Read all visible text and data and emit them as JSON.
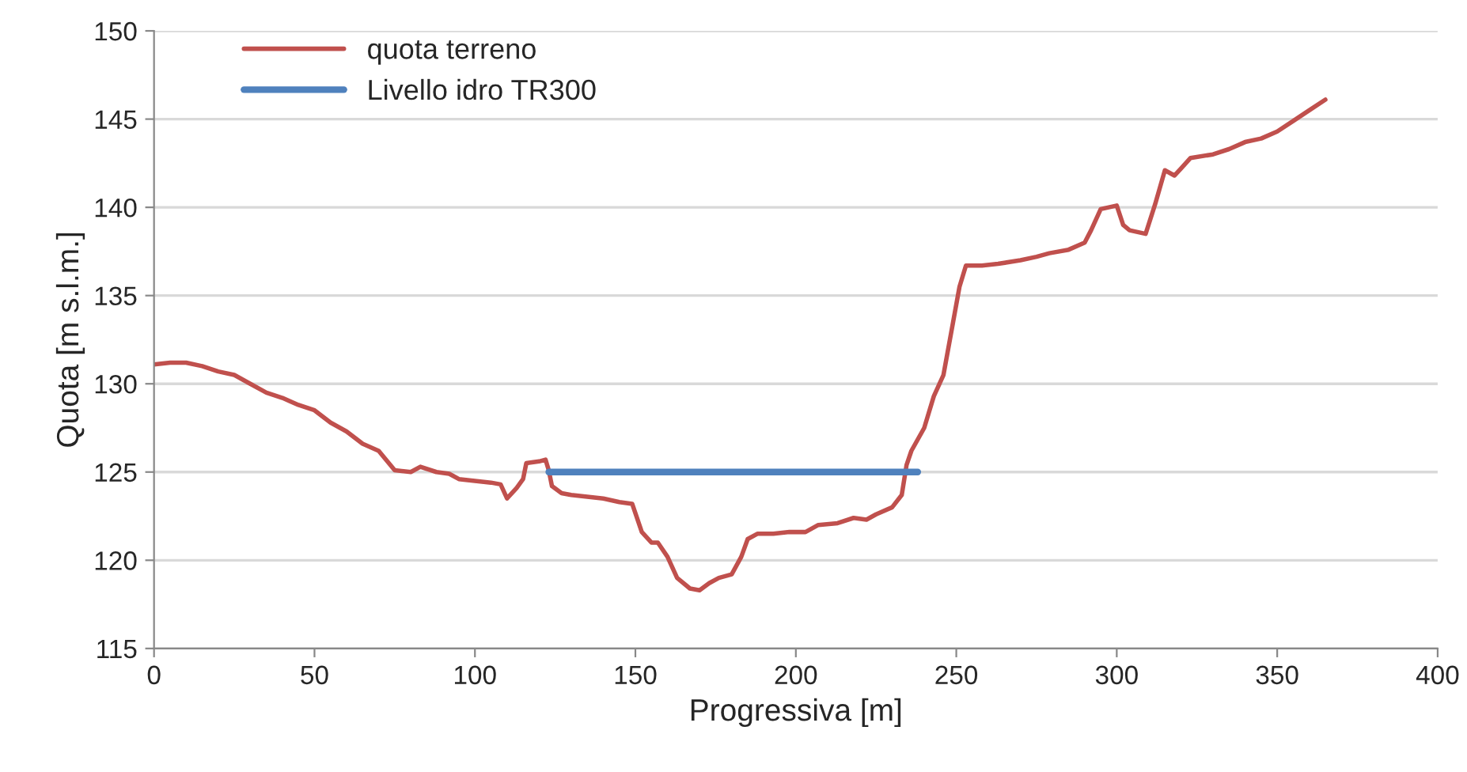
{
  "chart_data": {
    "type": "line",
    "xlabel": "Progressiva [m]",
    "ylabel": "Quota [m s.l.m.]",
    "xlim": [
      0,
      400
    ],
    "xticks": [
      0,
      50,
      100,
      150,
      200,
      250,
      300,
      350,
      400
    ],
    "ylim": [
      115,
      150
    ],
    "yticks": [
      115,
      120,
      125,
      130,
      135,
      140,
      145,
      150
    ],
    "grid": "y",
    "legend": "top left",
    "marker": "none",
    "line_style": "solid",
    "series": [
      {
        "name": "quota terreno",
        "color": "#c0504d",
        "x": [
          0,
          5,
          10,
          15,
          20,
          25,
          30,
          35,
          40,
          45,
          50,
          55,
          60,
          65,
          70,
          75,
          80,
          83,
          88,
          92,
          95,
          100,
          105,
          108,
          110,
          113,
          115,
          116,
          120,
          122,
          123,
          124,
          127,
          130,
          135,
          140,
          145,
          149,
          152,
          155,
          157,
          160,
          163,
          167,
          170,
          173,
          176,
          180,
          183,
          185,
          188,
          193,
          198,
          203,
          207,
          213,
          218,
          222,
          225,
          230,
          233,
          234.5,
          236,
          240,
          243,
          246,
          249,
          251,
          253,
          258,
          263,
          270,
          275,
          279,
          285,
          290,
          292,
          295,
          300,
          302,
          304,
          309,
          312,
          315,
          318,
          320,
          323,
          330,
          335,
          340,
          345,
          350,
          355,
          360,
          365
        ],
        "values": [
          131.1,
          131.2,
          131.2,
          131.0,
          130.7,
          130.5,
          130.0,
          129.5,
          129.2,
          128.8,
          128.5,
          127.8,
          127.3,
          126.6,
          126.2,
          125.1,
          125.0,
          125.3,
          125.0,
          124.9,
          124.6,
          124.5,
          124.4,
          124.3,
          123.5,
          124.1,
          124.6,
          125.5,
          125.6,
          125.7,
          125.1,
          124.2,
          123.8,
          123.7,
          123.6,
          123.5,
          123.3,
          123.2,
          121.6,
          121.0,
          121.0,
          120.2,
          119.0,
          118.4,
          118.3,
          118.7,
          119.0,
          119.2,
          120.2,
          121.2,
          121.5,
          121.5,
          121.6,
          121.6,
          122.0,
          122.1,
          122.4,
          122.3,
          122.6,
          123.0,
          123.7,
          125.4,
          126.2,
          127.5,
          129.3,
          130.5,
          133.5,
          135.5,
          136.7,
          136.7,
          136.8,
          137.0,
          137.2,
          137.4,
          137.6,
          138.0,
          138.7,
          139.9,
          140.1,
          139.0,
          138.7,
          138.5,
          140.2,
          142.1,
          141.8,
          142.2,
          142.8,
          143.0,
          143.3,
          143.7,
          143.9,
          144.3,
          144.9,
          145.5,
          146.1
        ]
      },
      {
        "name": "Livello idro TR300",
        "color": "#4f81bd",
        "x": [
          123,
          238
        ],
        "values": [
          125,
          125
        ]
      }
    ]
  }
}
